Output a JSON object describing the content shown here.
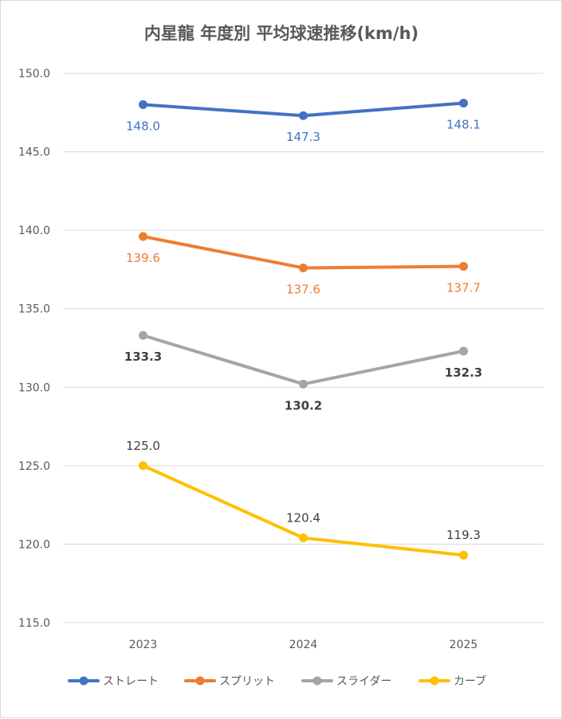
{
  "chart_data": {
    "type": "line",
    "title": "内星龍 年度別 平均球速推移(km/h)",
    "categories": [
      "2023",
      "2024",
      "2025"
    ],
    "ylim": [
      115.0,
      150.0
    ],
    "yticks": [
      115.0,
      120.0,
      125.0,
      130.0,
      135.0,
      140.0,
      145.0,
      150.0
    ],
    "grid": true,
    "legend_position": "bottom",
    "series": [
      {
        "name": "ストレート",
        "values": [
          148.0,
          147.3,
          148.1
        ],
        "color": "#4472c4",
        "label_color": "#4472c4",
        "label_pos": "below",
        "label_bold": false
      },
      {
        "name": "スプリット",
        "values": [
          139.6,
          137.6,
          137.7
        ],
        "color": "#ed7d31",
        "label_color": "#ed7d31",
        "label_pos": "below",
        "label_bold": false
      },
      {
        "name": "スライダー",
        "values": [
          133.3,
          130.2,
          132.3
        ],
        "color": "#a5a5a5",
        "label_color": "#404040",
        "label_pos": "below",
        "label_bold": true
      },
      {
        "name": "カーブ",
        "values": [
          125.0,
          120.4,
          119.3
        ],
        "color": "#ffc000",
        "label_color": "#404040",
        "label_pos": "above",
        "label_bold": false
      }
    ]
  }
}
